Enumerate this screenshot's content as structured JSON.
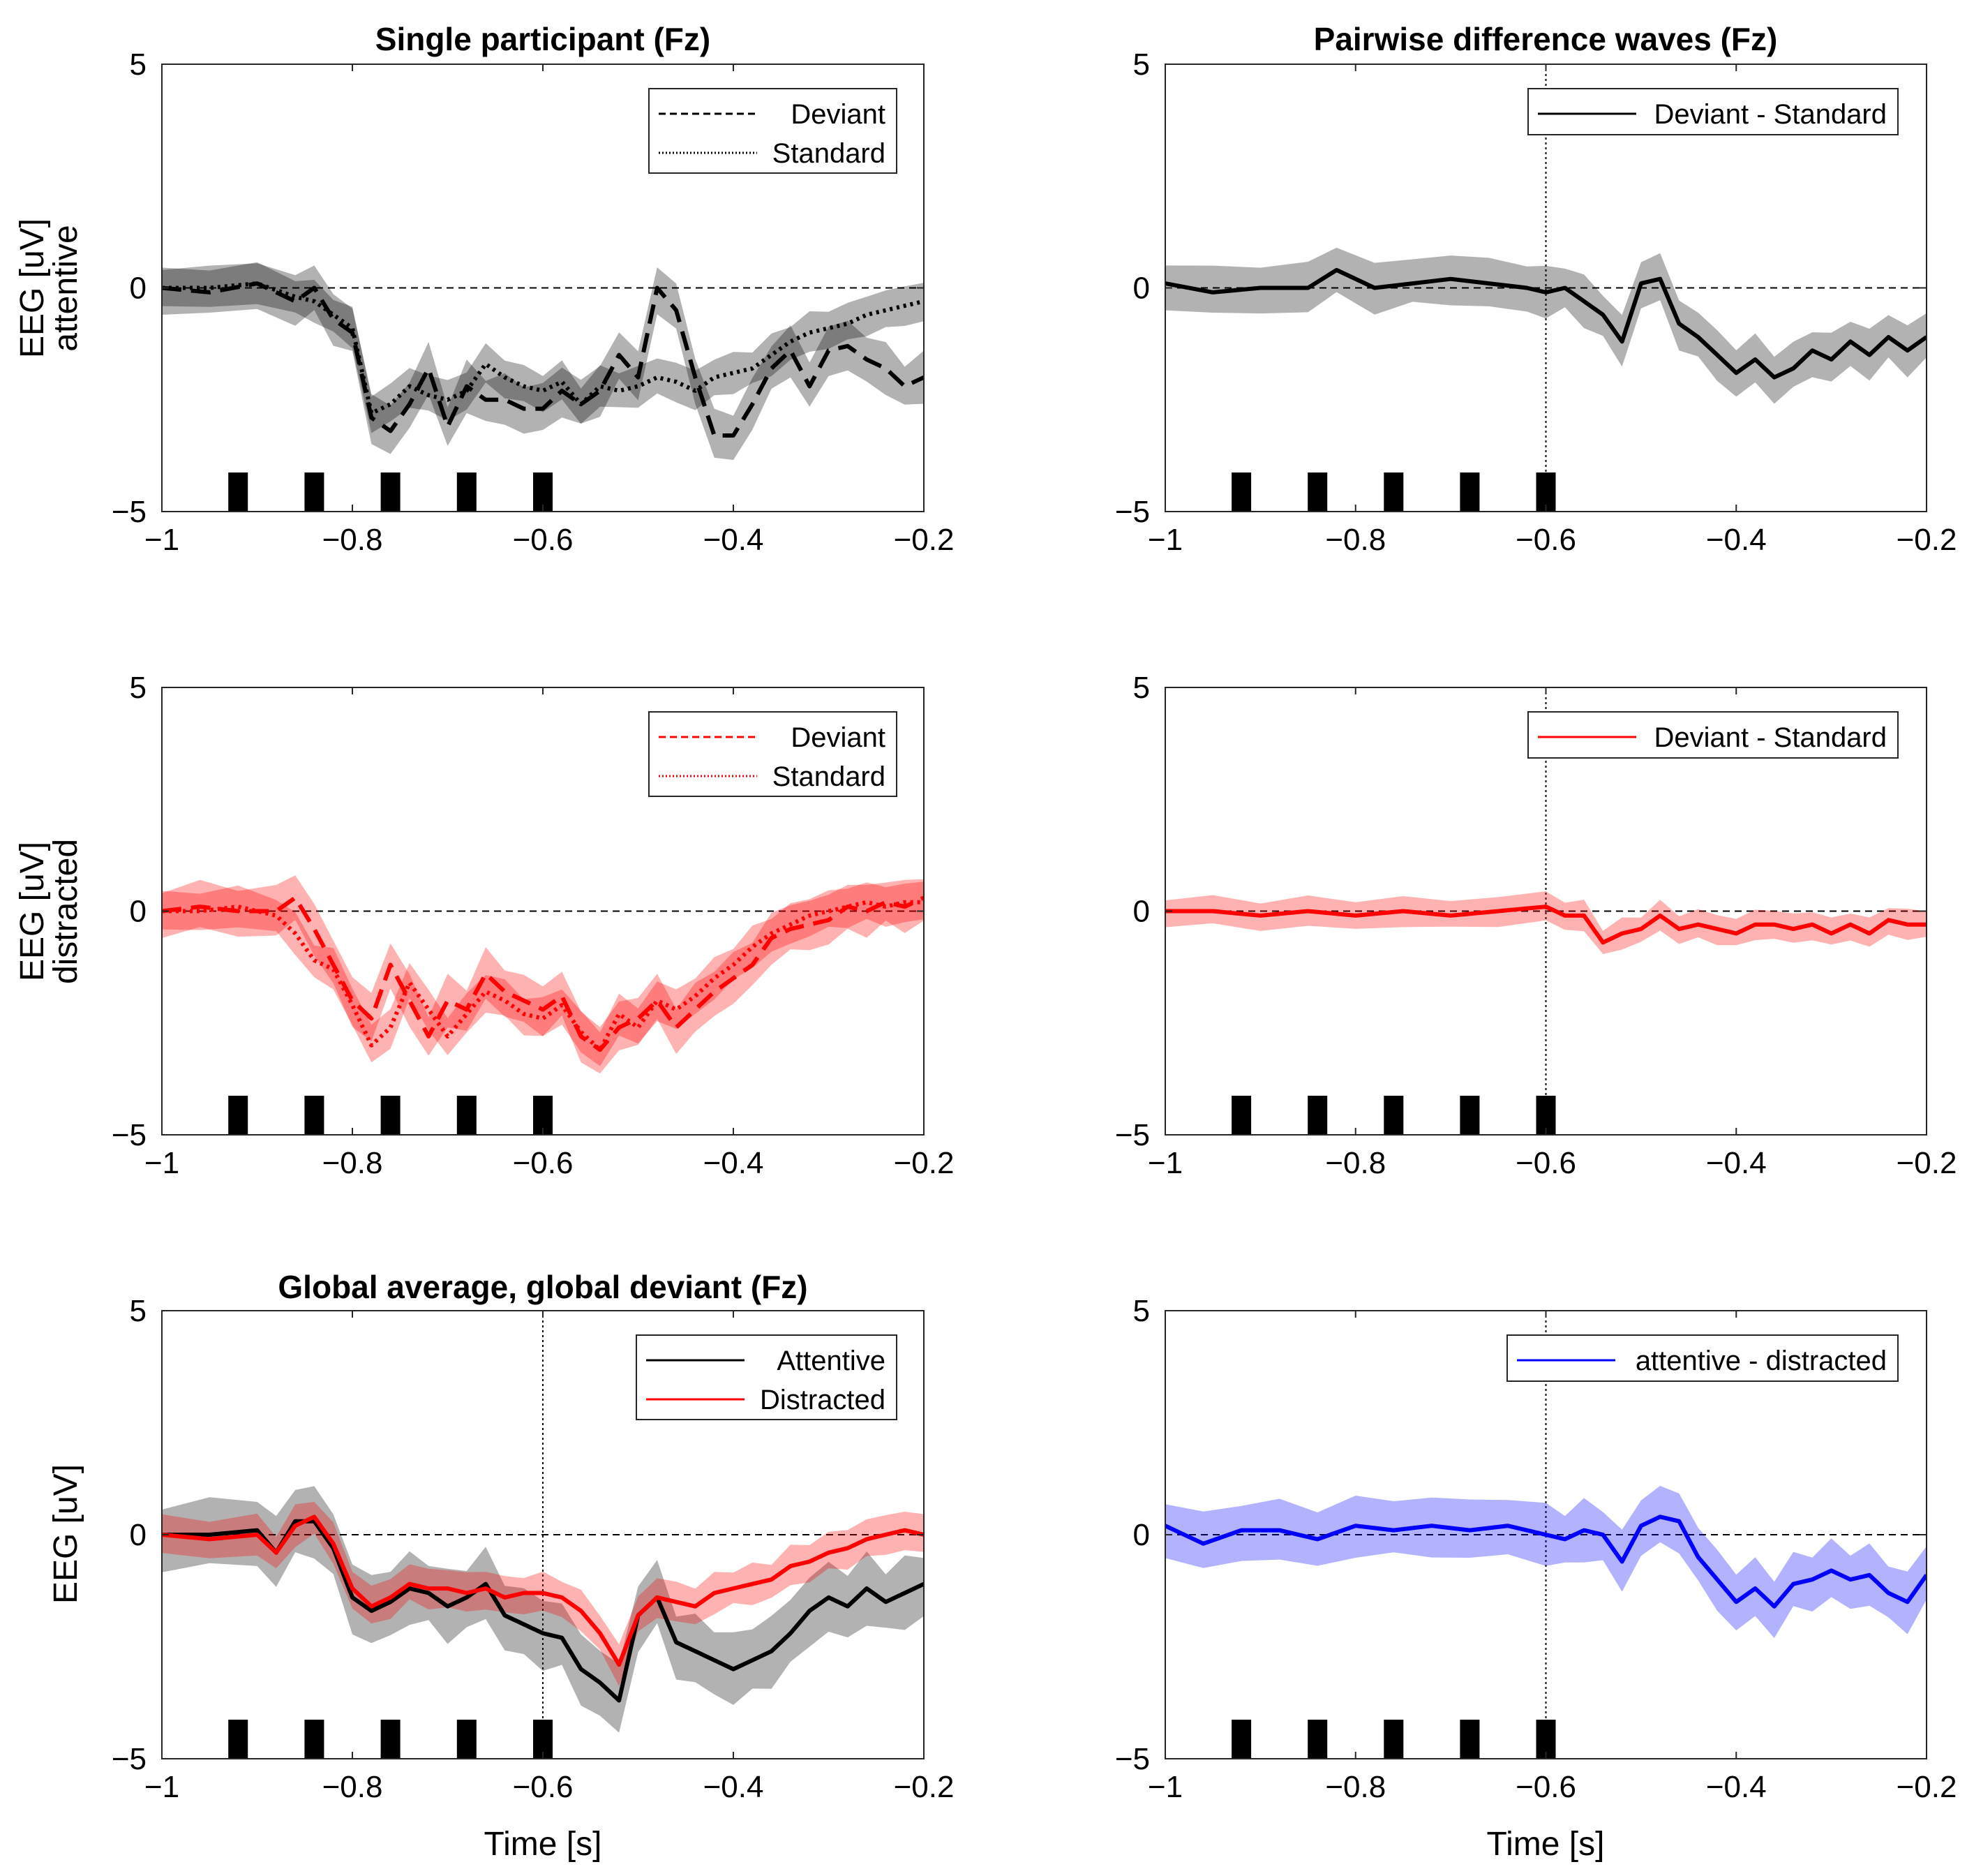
{
  "figure": {
    "common": {
      "xlim": [
        -1,
        -0.2
      ],
      "ylim": [
        -5,
        5
      ],
      "xticks": [
        -1,
        -0.8,
        -0.6,
        -0.4,
        -0.2
      ],
      "xtick_labels": [
        "−1",
        "−0.8",
        "−0.6",
        "−0.4",
        "−0.2"
      ],
      "yticks": [
        -5,
        0,
        5
      ],
      "ytick_labels": [
        "−5",
        "0",
        "5"
      ],
      "stimulus_markers_s": [
        -0.92,
        -0.84,
        -0.76,
        -0.68,
        -0.6
      ],
      "xlabel": "Time [s]"
    },
    "row_labels": {
      "row1_a": "EEG [uV]",
      "row1_b": "attentive",
      "row2_a": "EEG [uV]",
      "row2_b": "distracted",
      "row3_a": "EEG [uV]"
    },
    "titles": {
      "p1": "Single participant (Fz)",
      "p2": "Pairwise difference waves (Fz)",
      "p5": "Global average, global deviant (Fz)"
    },
    "legends": {
      "p1": [
        "Deviant",
        "Standard"
      ],
      "p2": [
        "Deviant - Standard"
      ],
      "p3": [
        "Deviant",
        "Standard"
      ],
      "p4": [
        "Deviant - Standard"
      ],
      "p5": [
        "Attentive",
        "Distracted"
      ],
      "p6": [
        "attentive - distracted"
      ]
    },
    "xlabels": {
      "p5": "Time [s]",
      "p6": "Time [s]"
    }
  },
  "chart_data": [
    {
      "id": "p1",
      "type": "line",
      "title": "Single participant (Fz)",
      "ylabel": "EEG [uV] attentive",
      "xlim": [
        -1,
        -0.2
      ],
      "ylim": [
        -5,
        5
      ],
      "x": [
        -1,
        -0.95,
        -0.9,
        -0.86,
        -0.84,
        -0.82,
        -0.8,
        -0.78,
        -0.76,
        -0.74,
        -0.72,
        -0.7,
        -0.68,
        -0.66,
        -0.64,
        -0.62,
        -0.6,
        -0.58,
        -0.56,
        -0.54,
        -0.52,
        -0.5,
        -0.48,
        -0.46,
        -0.44,
        -0.42,
        -0.4,
        -0.38,
        -0.36,
        -0.34,
        -0.32,
        -0.3,
        -0.28,
        -0.26,
        -0.24,
        -0.22,
        -0.2
      ],
      "series": [
        {
          "name": "Deviant",
          "color": "#000000",
          "dash": "dashed",
          "values": [
            0,
            -0.1,
            0.1,
            -0.3,
            0,
            -0.7,
            -1.0,
            -2.9,
            -3.2,
            -2.6,
            -1.8,
            -3.1,
            -2.2,
            -2.5,
            -2.5,
            -2.7,
            -2.7,
            -2.3,
            -2.6,
            -2.3,
            -1.5,
            -2.0,
            0.0,
            -0.5,
            -2.0,
            -3.3,
            -3.3,
            -2.6,
            -1.8,
            -1.4,
            -2.2,
            -1.4,
            -1.3,
            -1.6,
            -1.8,
            -2.2,
            -2.0
          ],
          "band": 0.5
        },
        {
          "name": "Standard",
          "color": "#000000",
          "dash": "dotted",
          "values": [
            0,
            0,
            0.1,
            -0.2,
            -0.3,
            -0.6,
            -0.9,
            -2.8,
            -2.6,
            -2.2,
            -2.4,
            -2.5,
            -2.3,
            -1.7,
            -2.0,
            -2.2,
            -2.3,
            -2.1,
            -2.6,
            -2.2,
            -2.3,
            -2.2,
            -2.0,
            -2.1,
            -2.3,
            -2.0,
            -1.9,
            -1.8,
            -1.5,
            -1.2,
            -1.0,
            -0.9,
            -0.8,
            -0.6,
            -0.5,
            -0.4,
            -0.3
          ],
          "band": 0.4
        }
      ]
    },
    {
      "id": "p2",
      "type": "line",
      "title": "Pairwise difference waves (Fz)",
      "xlim": [
        -1,
        -0.2
      ],
      "ylim": [
        -5,
        5
      ],
      "x": [
        -1,
        -0.95,
        -0.9,
        -0.85,
        -0.82,
        -0.78,
        -0.74,
        -0.7,
        -0.66,
        -0.62,
        -0.6,
        -0.58,
        -0.56,
        -0.54,
        -0.52,
        -0.5,
        -0.48,
        -0.46,
        -0.44,
        -0.42,
        -0.4,
        -0.38,
        -0.36,
        -0.34,
        -0.32,
        -0.3,
        -0.28,
        -0.26,
        -0.24,
        -0.22,
        -0.2
      ],
      "series": [
        {
          "name": "Deviant - Standard",
          "color": "#000000",
          "dash": "solid",
          "values": [
            0.1,
            -0.1,
            0,
            0,
            0.4,
            0,
            0.1,
            0.2,
            0.1,
            0,
            -0.1,
            0,
            -0.3,
            -0.6,
            -1.2,
            0.1,
            0.2,
            -0.8,
            -1.1,
            -1.5,
            -1.9,
            -1.6,
            -2.0,
            -1.8,
            -1.4,
            -1.6,
            -1.2,
            -1.5,
            -1.1,
            -1.4,
            -1.1
          ],
          "band": 0.5
        }
      ]
    },
    {
      "id": "p3",
      "type": "line",
      "ylabel": "EEG [uV] distracted",
      "xlim": [
        -1,
        -0.2
      ],
      "ylim": [
        -5,
        5
      ],
      "x": [
        -1,
        -0.96,
        -0.92,
        -0.88,
        -0.86,
        -0.84,
        -0.82,
        -0.8,
        -0.78,
        -0.76,
        -0.74,
        -0.72,
        -0.7,
        -0.68,
        -0.66,
        -0.64,
        -0.62,
        -0.6,
        -0.58,
        -0.56,
        -0.54,
        -0.52,
        -0.5,
        -0.48,
        -0.46,
        -0.44,
        -0.42,
        -0.4,
        -0.38,
        -0.36,
        -0.34,
        -0.32,
        -0.3,
        -0.28,
        -0.26,
        -0.24,
        -0.22,
        -0.2
      ],
      "series": [
        {
          "name": "Deviant",
          "color": "#ff0000",
          "dash": "dashed",
          "values": [
            0,
            0.1,
            0,
            0,
            0.3,
            -0.4,
            -1.2,
            -2.0,
            -2.4,
            -1.2,
            -2.0,
            -2.8,
            -2.0,
            -2.2,
            -1.4,
            -1.8,
            -2.0,
            -2.2,
            -1.9,
            -2.8,
            -3.1,
            -2.6,
            -2.4,
            -2.0,
            -2.6,
            -2.2,
            -1.8,
            -1.5,
            -1.2,
            -0.6,
            -0.4,
            -0.3,
            -0.2,
            0.1,
            0,
            0.2,
            0.1,
            0.3
          ],
          "band": 0.5
        },
        {
          "name": "Standard",
          "color": "#ff0000",
          "dash": "dotted",
          "values": [
            0,
            0,
            0.1,
            -0.1,
            -0.5,
            -1.1,
            -1.3,
            -2.1,
            -3.0,
            -2.6,
            -1.6,
            -2.2,
            -2.8,
            -2.3,
            -1.8,
            -2.0,
            -2.3,
            -2.4,
            -2.1,
            -2.7,
            -3.1,
            -2.3,
            -2.6,
            -2.0,
            -2.2,
            -1.9,
            -1.5,
            -1.2,
            -0.8,
            -0.5,
            -0.3,
            -0.1,
            0,
            0.1,
            0.2,
            0.1,
            0.2,
            0.2
          ],
          "band": 0.4
        }
      ]
    },
    {
      "id": "p4",
      "type": "line",
      "xlim": [
        -1,
        -0.2
      ],
      "ylim": [
        -5,
        5
      ],
      "x": [
        -1,
        -0.95,
        -0.9,
        -0.85,
        -0.8,
        -0.75,
        -0.7,
        -0.65,
        -0.6,
        -0.58,
        -0.56,
        -0.54,
        -0.52,
        -0.5,
        -0.48,
        -0.46,
        -0.44,
        -0.42,
        -0.4,
        -0.38,
        -0.36,
        -0.34,
        -0.32,
        -0.3,
        -0.28,
        -0.26,
        -0.24,
        -0.22,
        -0.2
      ],
      "series": [
        {
          "name": "Deviant - Standard",
          "color": "#ff0000",
          "dash": "solid",
          "values": [
            0,
            0,
            -0.1,
            0,
            -0.1,
            0,
            -0.1,
            0,
            0.1,
            -0.1,
            -0.1,
            -0.7,
            -0.5,
            -0.4,
            -0.1,
            -0.4,
            -0.3,
            -0.4,
            -0.5,
            -0.3,
            -0.3,
            -0.4,
            -0.3,
            -0.5,
            -0.3,
            -0.5,
            -0.2,
            -0.3,
            -0.3
          ],
          "band": 0.3
        }
      ]
    },
    {
      "id": "p5",
      "type": "line",
      "title": "Global average, global deviant (Fz)",
      "ylabel": "EEG [uV]",
      "xlabel": "Time [s]",
      "xlim": [
        -1,
        -0.2
      ],
      "ylim": [
        -5,
        5
      ],
      "vline": -0.6,
      "x": [
        -1,
        -0.95,
        -0.9,
        -0.88,
        -0.86,
        -0.84,
        -0.82,
        -0.8,
        -0.78,
        -0.76,
        -0.74,
        -0.72,
        -0.7,
        -0.68,
        -0.66,
        -0.64,
        -0.62,
        -0.6,
        -0.58,
        -0.56,
        -0.54,
        -0.52,
        -0.5,
        -0.48,
        -0.46,
        -0.44,
        -0.42,
        -0.4,
        -0.38,
        -0.36,
        -0.34,
        -0.32,
        -0.3,
        -0.28,
        -0.26,
        -0.24,
        -0.22,
        -0.2
      ],
      "series": [
        {
          "name": "Attentive",
          "color": "#000000",
          "dash": "solid",
          "values": [
            0,
            0,
            0.1,
            -0.4,
            0.3,
            0.3,
            -0.3,
            -1.4,
            -1.7,
            -1.5,
            -1.2,
            -1.3,
            -1.6,
            -1.4,
            -1.1,
            -1.8,
            -2.0,
            -2.2,
            -2.3,
            -3.0,
            -3.3,
            -3.7,
            -1.8,
            -1.4,
            -2.4,
            -2.6,
            -2.8,
            -3.0,
            -2.8,
            -2.6,
            -2.2,
            -1.7,
            -1.4,
            -1.6,
            -1.2,
            -1.5,
            -1.3,
            -1.1
          ],
          "band": 0.7
        },
        {
          "name": "Distracted",
          "color": "#ff0000",
          "dash": "solid",
          "values": [
            0,
            -0.1,
            0,
            -0.4,
            0.2,
            0.4,
            -0.2,
            -1.2,
            -1.6,
            -1.4,
            -1.1,
            -1.2,
            -1.2,
            -1.3,
            -1.2,
            -1.4,
            -1.3,
            -1.3,
            -1.4,
            -1.7,
            -2.2,
            -2.9,
            -1.8,
            -1.4,
            -1.5,
            -1.6,
            -1.3,
            -1.2,
            -1.1,
            -1.0,
            -0.7,
            -0.6,
            -0.4,
            -0.3,
            -0.1,
            0,
            0.1,
            0
          ],
          "band": 0.4
        }
      ]
    },
    {
      "id": "p6",
      "type": "line",
      "xlabel": "Time [s]",
      "xlim": [
        -1,
        -0.2
      ],
      "ylim": [
        -5,
        5
      ],
      "x": [
        -1,
        -0.96,
        -0.92,
        -0.88,
        -0.84,
        -0.8,
        -0.76,
        -0.72,
        -0.68,
        -0.64,
        -0.6,
        -0.58,
        -0.56,
        -0.54,
        -0.52,
        -0.5,
        -0.48,
        -0.46,
        -0.44,
        -0.42,
        -0.4,
        -0.38,
        -0.36,
        -0.34,
        -0.32,
        -0.3,
        -0.28,
        -0.26,
        -0.24,
        -0.22,
        -0.2
      ],
      "series": [
        {
          "name": "attentive - distracted",
          "color": "#0000ff",
          "dash": "solid",
          "values": [
            0.2,
            -0.2,
            0.1,
            0.1,
            -0.1,
            0.2,
            0.1,
            0.2,
            0.1,
            0.2,
            0,
            -0.1,
            0.1,
            0,
            -0.6,
            0.2,
            0.4,
            0.3,
            -0.5,
            -1.0,
            -1.5,
            -1.2,
            -1.6,
            -1.1,
            -1.0,
            -0.8,
            -1.0,
            -0.9,
            -1.3,
            -1.5,
            -0.9
          ],
          "band": 0.6
        }
      ]
    }
  ]
}
